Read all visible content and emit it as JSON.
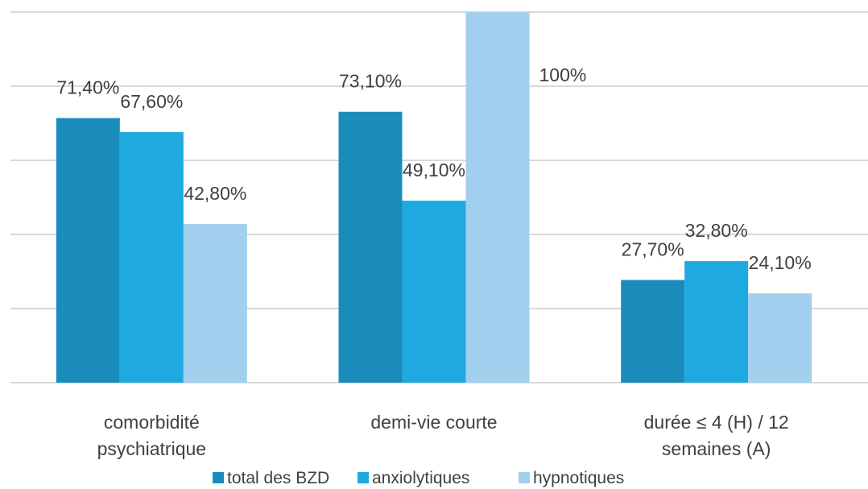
{
  "chart_data": {
    "type": "bar",
    "categories": [
      "comorbidité psychiatrique",
      "demi-vie courte",
      "durée ≤ 4 (H) / 12 semaines (A)"
    ],
    "series": [
      {
        "name": "total des BZD",
        "color": "#1a8cbc",
        "values": [
          71.4,
          73.1,
          27.7
        ],
        "value_labels": [
          "71,40%",
          "73,10%",
          "27,70%"
        ]
      },
      {
        "name": "anxiolytiques",
        "color": "#1fa9e1",
        "values": [
          67.6,
          49.1,
          32.8
        ],
        "value_labels": [
          "67,60%",
          "49,10%",
          "32,80%"
        ]
      },
      {
        "name": "hypnotiques",
        "color": "#a3cfee",
        "values": [
          42.8,
          100,
          24.1
        ],
        "value_labels": [
          "42,80%",
          "100%",
          "24,10%"
        ]
      }
    ],
    "ylim": [
      0,
      100
    ],
    "yticks": [
      0,
      20,
      40,
      60,
      80,
      100
    ],
    "grid": true,
    "legend": "bottom"
  }
}
